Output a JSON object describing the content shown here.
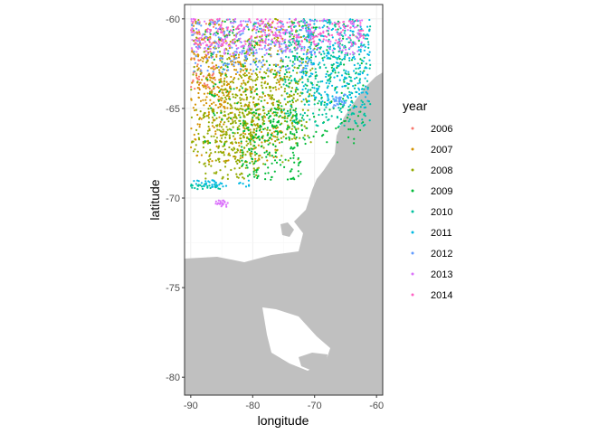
{
  "chart_data": {
    "type": "scatter",
    "title": "",
    "xlabel": "longitude",
    "ylabel": "latitude",
    "xlim": [
      -91,
      -59
    ],
    "ylim": [
      -81,
      -59.2
    ],
    "x_ticks": [
      -90,
      -80,
      -70,
      -60
    ],
    "y_ticks": [
      -60,
      -65,
      -70,
      -75,
      -80
    ],
    "x_tick_labels": [
      "-90",
      "-80",
      "-70",
      "-60"
    ],
    "y_tick_labels": [
      "-60",
      "-65",
      "-70",
      "-75",
      "-80"
    ],
    "grid": true,
    "legend": {
      "title": "year",
      "position": "right"
    },
    "background_land_color": "#c0c0c0",
    "series": [
      {
        "name": "2006",
        "color": "#F8766D",
        "regions": [
          [
            -90,
            -86,
            -64,
            -60
          ]
        ]
      },
      {
        "name": "2007",
        "color": "#D39200",
        "regions": [
          [
            -90,
            -75,
            -68,
            -60
          ],
          [
            -89,
            -80,
            -65,
            -62
          ]
        ]
      },
      {
        "name": "2008",
        "color": "#93AA00",
        "regions": [
          [
            -90,
            -70,
            -68,
            -60
          ],
          [
            -88,
            -78,
            -69,
            -65
          ],
          [
            -85,
            -72,
            -67,
            -63
          ]
        ]
      },
      {
        "name": "2009",
        "color": "#00BA38",
        "regions": [
          [
            -88,
            -62,
            -67,
            -60
          ],
          [
            -82,
            -72,
            -69,
            -65
          ]
        ]
      },
      {
        "name": "2010",
        "color": "#00C19F",
        "regions": [
          [
            -75,
            -61,
            -66,
            -60
          ],
          [
            -90,
            -85,
            -69.5,
            -69.2
          ]
        ]
      },
      {
        "name": "2011",
        "color": "#00B9E3",
        "regions": [
          [
            -72,
            -61,
            -65,
            -60
          ],
          [
            -90,
            -80,
            -69.4,
            -69.0
          ]
        ]
      },
      {
        "name": "2012",
        "color": "#619CFF",
        "regions": [
          [
            -90,
            -70,
            -63,
            -60
          ],
          [
            -67,
            -65,
            -65,
            -64.2
          ]
        ]
      },
      {
        "name": "2013",
        "color": "#DB72FB",
        "regions": [
          [
            -90,
            -62,
            -62,
            -60
          ],
          [
            -86,
            -84,
            -70.5,
            -70.1
          ]
        ]
      },
      {
        "name": "2014",
        "color": "#FF61C3",
        "regions": [
          [
            -90,
            -62,
            -61.5,
            -60
          ]
        ]
      }
    ]
  }
}
